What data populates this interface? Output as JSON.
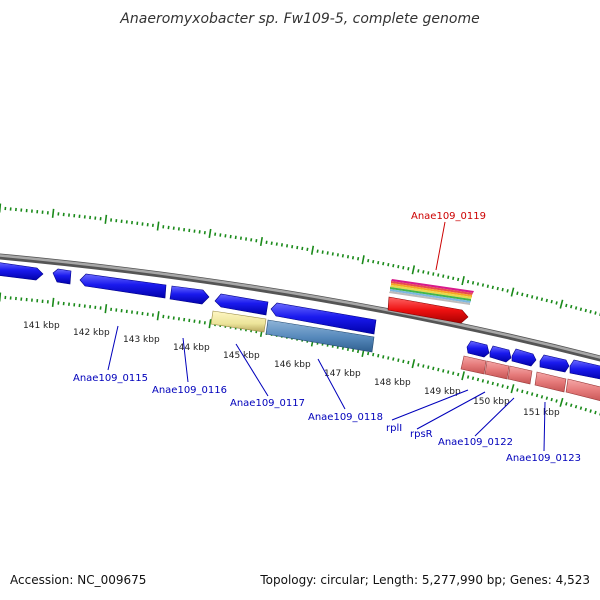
{
  "title": "Anaeromyxobacter sp. Fw109-5, complete genome",
  "footer": {
    "accession": "Accession: NC_009675",
    "topology": "Topology: circular; Length: 5,277,990 bp; Genes: 4,523"
  },
  "scale_labels": [
    "141 kbp",
    "142 kbp",
    "143 kbp",
    "144 kbp",
    "145 kbp",
    "146 kbp",
    "147 kbp",
    "148 kbp",
    "149 kbp",
    "150 kbp",
    "151 kbp"
  ],
  "gene_labels": [
    {
      "id": "label-anae109-0119",
      "text": "Anae109_0119",
      "color": "#cc0000"
    },
    {
      "id": "label-anae109-0115",
      "text": "Anae109_0115",
      "color": "#0000bb"
    },
    {
      "id": "label-anae109-0116",
      "text": "Anae109_0116",
      "color": "#0000bb"
    },
    {
      "id": "label-anae109-0117",
      "text": "Anae109_0117",
      "color": "#0000bb"
    },
    {
      "id": "label-anae109-0118",
      "text": "Anae109_0118",
      "color": "#0000bb"
    },
    {
      "id": "label-rpll",
      "text": "rplI",
      "color": "#0000bb"
    },
    {
      "id": "label-rpsr",
      "text": "rpsR",
      "color": "#0000bb"
    },
    {
      "id": "label-anae109-0122",
      "text": "Anae109_0122",
      "color": "#0000bb"
    },
    {
      "id": "label-anae109-0123",
      "text": "Anae109_0123",
      "color": "#0000bb"
    }
  ],
  "colors": {
    "backbone": "#888888",
    "tick": "#1a8a1a",
    "cds_forward": "#1a1aee",
    "cds_reverse": "#e06a6a",
    "yellow_feature": "#ece49a",
    "steelblue_feature": "#5588bb",
    "red_feature": "#ee1111"
  }
}
